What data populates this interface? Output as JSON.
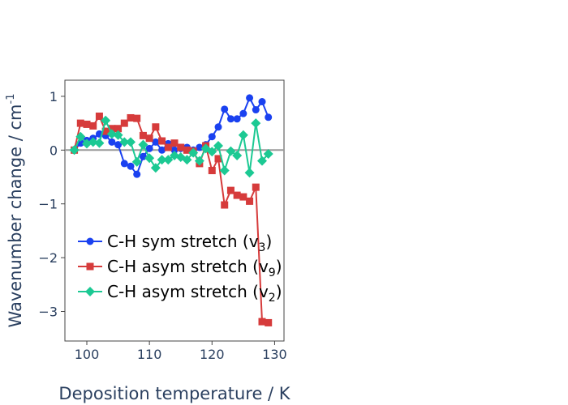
{
  "chart_data": {
    "type": "line",
    "xlabel": "Deposition temperature / K",
    "ylabel": "Wavenumber change / cm",
    "ylabel_superscript": "-1",
    "xlim": [
      96.5,
      131.5
    ],
    "ylim": [
      -3.55,
      1.3
    ],
    "xticks": [
      100,
      110,
      120,
      130
    ],
    "yticks": [
      1,
      0,
      -1,
      -2,
      -3
    ],
    "ytick_labels": [
      "1",
      "0",
      "−1",
      "−2",
      "−3"
    ],
    "zero_line": true,
    "grid": false,
    "legend_position": "bottom-left",
    "series": [
      {
        "name": "C-H sym stretch (v",
        "subscript": "3",
        "suffix": ")",
        "color": "#1a41f0",
        "marker": "circle",
        "x": [
          98,
          99,
          100,
          101,
          102,
          103,
          104,
          105,
          106,
          107,
          108,
          109,
          110,
          111,
          112,
          113,
          114,
          115,
          116,
          117,
          118,
          119,
          120,
          121,
          122,
          123,
          124,
          125,
          126,
          127,
          128,
          129
        ],
        "values": [
          0.0,
          0.13,
          0.18,
          0.22,
          0.3,
          0.27,
          0.15,
          0.1,
          -0.25,
          -0.3,
          -0.45,
          -0.12,
          0.03,
          0.15,
          0.0,
          0.12,
          0.0,
          0.03,
          0.05,
          0.0,
          0.05,
          0.1,
          0.25,
          0.43,
          0.76,
          0.58,
          0.58,
          0.68,
          0.97,
          0.75,
          0.9,
          0.61
        ]
      },
      {
        "name": "C-H asym stretch (v",
        "subscript": "9",
        "suffix": ")",
        "color": "#d63b3b",
        "marker": "square",
        "x": [
          98,
          99,
          100,
          101,
          102,
          103,
          104,
          105,
          106,
          107,
          108,
          109,
          110,
          111,
          112,
          113,
          114,
          115,
          116,
          117,
          118,
          119,
          120,
          121,
          122,
          123,
          124,
          125,
          126,
          127,
          128,
          129
        ],
        "values": [
          0.0,
          0.5,
          0.48,
          0.45,
          0.63,
          0.35,
          0.4,
          0.4,
          0.5,
          0.6,
          0.59,
          0.27,
          0.22,
          0.43,
          0.17,
          0.05,
          0.13,
          0.05,
          0.0,
          -0.02,
          -0.25,
          0.08,
          -0.38,
          -0.16,
          -1.02,
          -0.75,
          -0.84,
          -0.87,
          -0.95,
          -0.69,
          -3.19,
          -3.21
        ]
      },
      {
        "name": "C-H asym stretch (v",
        "subscript": "2",
        "suffix": ")",
        "color": "#1cc993",
        "marker": "diamond",
        "x": [
          98,
          99,
          100,
          101,
          102,
          103,
          104,
          105,
          106,
          107,
          108,
          109,
          110,
          111,
          112,
          113,
          114,
          115,
          116,
          117,
          118,
          119,
          120,
          121,
          122,
          123,
          124,
          125,
          126,
          127,
          128,
          129
        ],
        "values": [
          0.0,
          0.25,
          0.12,
          0.15,
          0.13,
          0.55,
          0.3,
          0.28,
          0.15,
          0.15,
          -0.22,
          0.1,
          -0.15,
          -0.33,
          -0.18,
          -0.18,
          -0.1,
          -0.13,
          -0.18,
          -0.05,
          -0.2,
          0.03,
          -0.03,
          0.08,
          -0.38,
          -0.02,
          -0.1,
          0.28,
          -0.42,
          0.5,
          -0.2,
          -0.07
        ]
      }
    ]
  }
}
